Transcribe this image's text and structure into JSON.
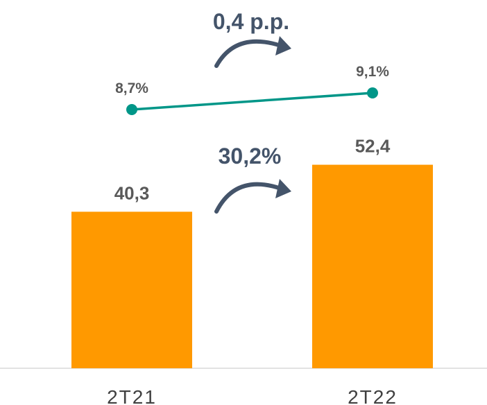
{
  "chart_data": {
    "type": "bar",
    "categories": [
      "2T21",
      "2T22"
    ],
    "series": [
      {
        "type": "bar",
        "values": [
          40.3,
          52.4
        ],
        "value_labels": [
          "40,3",
          "52,4"
        ],
        "color": "#ff9900"
      },
      {
        "type": "line",
        "values": [
          8.7,
          9.1
        ],
        "value_labels": [
          "8,7%",
          "9,1%"
        ],
        "color": "#009688"
      }
    ],
    "annotations": {
      "bar_growth": "30,2%",
      "line_growth": "0,4 p.p."
    },
    "grid": false,
    "legend": "none"
  },
  "colors": {
    "bar": "#ff9900",
    "line": "#009688",
    "arrow": "#44546a",
    "axis": "#d9d9d9"
  }
}
